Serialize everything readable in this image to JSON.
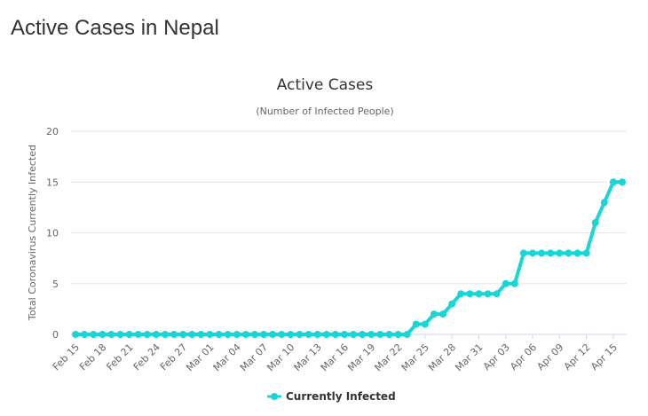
{
  "page": {
    "title": "Active Cases in Nepal"
  },
  "chart_data": {
    "type": "line",
    "title": "Active Cases",
    "subtitle": "(Number of Infected People)",
    "xlabel": "",
    "ylabel": "Total Coronavirus Currently Infected",
    "ylim": [
      0,
      20
    ],
    "yticks": [
      0,
      5,
      10,
      15,
      20
    ],
    "grid": true,
    "legend_placement": "bottom-center",
    "x_tick_labels": [
      "Feb 15",
      "Feb 18",
      "Feb 21",
      "Feb 24",
      "Feb 27",
      "Mar 01",
      "Mar 04",
      "Mar 07",
      "Mar 10",
      "Mar 13",
      "Mar 16",
      "Mar 19",
      "Mar 22",
      "Mar 25",
      "Mar 28",
      "Mar 31",
      "Apr 03",
      "Apr 06",
      "Apr 09",
      "Apr 12",
      "Apr 15"
    ],
    "x": [
      "Feb 15",
      "Feb 16",
      "Feb 17",
      "Feb 18",
      "Feb 19",
      "Feb 20",
      "Feb 21",
      "Feb 22",
      "Feb 23",
      "Feb 24",
      "Feb 25",
      "Feb 26",
      "Feb 27",
      "Feb 28",
      "Feb 29",
      "Mar 01",
      "Mar 02",
      "Mar 03",
      "Mar 04",
      "Mar 05",
      "Mar 06",
      "Mar 07",
      "Mar 08",
      "Mar 09",
      "Mar 10",
      "Mar 11",
      "Mar 12",
      "Mar 13",
      "Mar 14",
      "Mar 15",
      "Mar 16",
      "Mar 17",
      "Mar 18",
      "Mar 19",
      "Mar 20",
      "Mar 21",
      "Mar 22",
      "Mar 23",
      "Mar 24",
      "Mar 25",
      "Mar 26",
      "Mar 27",
      "Mar 28",
      "Mar 29",
      "Mar 30",
      "Mar 31",
      "Apr 01",
      "Apr 02",
      "Apr 03",
      "Apr 04",
      "Apr 05",
      "Apr 06",
      "Apr 07",
      "Apr 08",
      "Apr 09",
      "Apr 10",
      "Apr 11",
      "Apr 12",
      "Apr 13",
      "Apr 14",
      "Apr 15",
      "Apr 16"
    ],
    "series": [
      {
        "name": "Currently Infected",
        "color": "#18d6d6",
        "values": [
          0,
          0,
          0,
          0,
          0,
          0,
          0,
          0,
          0,
          0,
          0,
          0,
          0,
          0,
          0,
          0,
          0,
          0,
          0,
          0,
          0,
          0,
          0,
          0,
          0,
          0,
          0,
          0,
          0,
          0,
          0,
          0,
          0,
          0,
          0,
          0,
          0,
          0,
          1,
          1,
          2,
          2,
          3,
          4,
          4,
          4,
          4,
          4,
          5,
          5,
          8,
          8,
          8,
          8,
          8,
          8,
          8,
          8,
          11,
          13,
          15,
          15
        ]
      }
    ]
  }
}
